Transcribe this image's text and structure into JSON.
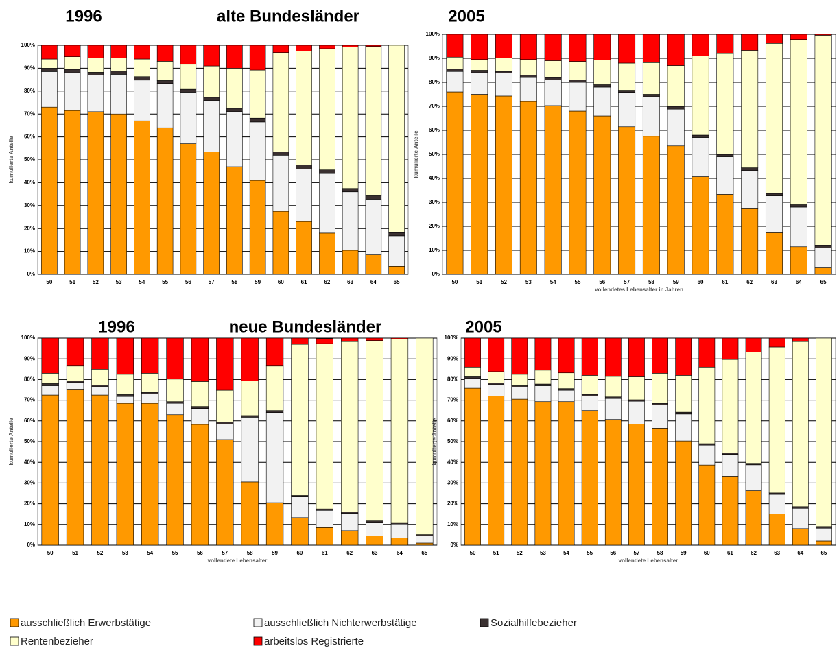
{
  "chart_data": [
    {
      "type": "bar",
      "stacked": true,
      "title": "1996",
      "subtitle": "alte Bundesländer",
      "y_label": "kumulierte Anteile",
      "categories": [
        "50",
        "51",
        "52",
        "53",
        "54",
        "55",
        "56",
        "57",
        "58",
        "59",
        "60",
        "61",
        "62",
        "63",
        "64",
        "65"
      ],
      "ylim": [
        0,
        100
      ],
      "yticks": [
        {
          "value": 0,
          "label": "0%"
        },
        {
          "value": 10,
          "label": "10%"
        },
        {
          "value": 20,
          "label": "20%"
        },
        {
          "value": 30,
          "label": "30%"
        },
        {
          "value": 40,
          "label": "40%"
        },
        {
          "value": 50,
          "label": "50%"
        },
        {
          "value": 60,
          "label": "60%"
        },
        {
          "value": 70,
          "label": "70%"
        },
        {
          "value": 80,
          "label": "80%"
        },
        {
          "value": 90,
          "label": "90%"
        },
        {
          "value": 100,
          "label": "100%"
        }
      ],
      "grid": true,
      "series": [
        {
          "name": "ausschließlich Erwerbstätige",
          "color": "#ff9900",
          "values": [
            73,
            71.5,
            71,
            70,
            67,
            64,
            57,
            53.5,
            47,
            41,
            27.5,
            23,
            18,
            10.5,
            8.5,
            3.5
          ]
        },
        {
          "name": "ausschließlich Nichterwerbstätige",
          "color": "#f2f2f2",
          "values": [
            15.5,
            16.5,
            16,
            17.3,
            17.8,
            19.3,
            22.5,
            22.3,
            24,
            25.5,
            24.5,
            23,
            26,
            25.5,
            24.3,
            13.3
          ]
        },
        {
          "name": "Sozialhilfebezieher",
          "color": "#3a3030",
          "values": [
            1.5,
            1.5,
            1.2,
            1.4,
            1.5,
            1.3,
            1.3,
            1.5,
            1.5,
            1.7,
            1.5,
            1.7,
            1.6,
            1.5,
            1.5,
            1.4
          ]
        },
        {
          "name": "Rentenbezieher",
          "color": "#ffffcc",
          "values": [
            4,
            5.5,
            6.3,
            5.8,
            7.7,
            8.4,
            10.9,
            13.7,
            17.5,
            21,
            43.3,
            49.8,
            52.9,
            61.8,
            65.2,
            81.8
          ]
        },
        {
          "name": "arbeitslos Registrierte",
          "color": "#ff0000",
          "values": [
            6,
            5,
            5.5,
            5.5,
            6,
            7,
            8.3,
            9,
            10,
            10.8,
            3.2,
            2.5,
            1.5,
            0.7,
            0.5,
            0
          ]
        }
      ]
    },
    {
      "type": "bar",
      "stacked": true,
      "title": "2005",
      "y_label": "kumulierte Anteile",
      "x_label": "vollendetes Lebensalter in Jahren",
      "categories": [
        "50",
        "51",
        "52",
        "53",
        "54",
        "55",
        "56",
        "57",
        "58",
        "59",
        "60",
        "61",
        "62",
        "63",
        "64",
        "65"
      ],
      "ylim": [
        0,
        100
      ],
      "yticks": [
        {
          "value": 0,
          "label": "0%"
        },
        {
          "value": 10,
          "label": "10%"
        },
        {
          "value": 20,
          "label": "20%"
        },
        {
          "value": 30,
          "label": "30%"
        },
        {
          "value": 40,
          "label": "40%"
        },
        {
          "value": 50,
          "label": "50%"
        },
        {
          "value": 60,
          "label": "60%"
        },
        {
          "value": 70,
          "label": "70%"
        },
        {
          "value": 80,
          "label": "80%"
        },
        {
          "value": 90,
          "label": "90%"
        },
        {
          "value": 100,
          "label": "100%"
        }
      ],
      "grid": true,
      "series": [
        {
          "color": "#ff9900",
          "values": [
            76,
            75,
            74.3,
            72,
            70.3,
            68,
            66,
            61.5,
            57.5,
            53.5,
            40.7,
            33.3,
            27.3,
            17.3,
            11.5,
            2.7
          ]
        },
        {
          "color": "#f2f2f2",
          "values": [
            8.5,
            9,
            9.5,
            10,
            10.7,
            12,
            12,
            14.3,
            16.5,
            15.3,
            16.3,
            15.7,
            15.9,
            15.4,
            16.5,
            8.3
          ]
        },
        {
          "color": "#3a3030",
          "values": [
            1,
            1,
            0.8,
            1,
            1,
            1,
            1,
            0.9,
            1,
            1.2,
            1,
            1,
            1.2,
            1,
            1,
            1
          ]
        },
        {
          "color": "#ffffcc",
          "values": [
            5,
            4.5,
            5.6,
            6.5,
            7,
            7.7,
            10.3,
            11.3,
            13.2,
            17,
            33,
            42,
            48.9,
            62.5,
            68.8,
            87.6
          ]
        },
        {
          "color": "#ff0000",
          "values": [
            9.5,
            10.5,
            9.8,
            10.5,
            11,
            11.3,
            10.7,
            12,
            11.8,
            13,
            9,
            8,
            6.7,
            3.8,
            2.2,
            0.4
          ]
        }
      ]
    },
    {
      "type": "bar",
      "stacked": true,
      "title": "1996",
      "subtitle": "neue Bundesländer",
      "y_label": "kumulierte Anteile",
      "x_label": "vollendete Lebensalter",
      "categories": [
        "50",
        "51",
        "52",
        "53",
        "54",
        "55",
        "56",
        "57",
        "58",
        "59",
        "60",
        "61",
        "62",
        "63",
        "64",
        "65"
      ],
      "ylim": [
        0,
        100
      ],
      "yticks": [
        {
          "value": 0,
          "label": "0%"
        },
        {
          "value": 10,
          "label": "10%"
        },
        {
          "value": 20,
          "label": "20%"
        },
        {
          "value": 30,
          "label": "30%"
        },
        {
          "value": 40,
          "label": "40%"
        },
        {
          "value": 50,
          "label": "50%"
        },
        {
          "value": 60,
          "label": "60%"
        },
        {
          "value": 70,
          "label": "70%"
        },
        {
          "value": 80,
          "label": "80%"
        },
        {
          "value": 90,
          "label": "90%"
        },
        {
          "value": 100,
          "label": "100%"
        }
      ],
      "grid": true,
      "series": [
        {
          "color": "#ff9900",
          "values": [
            72.5,
            75,
            72.5,
            68.5,
            68.5,
            63,
            58.3,
            51,
            30.5,
            20.5,
            13.3,
            8.5,
            7,
            4.5,
            3.5,
            1
          ]
        },
        {
          "color": "#f2f2f2",
          "values": [
            4.5,
            3.5,
            4,
            3.3,
            4.5,
            5.5,
            7.7,
            7.5,
            31.3,
            43.5,
            10,
            8.3,
            8.3,
            6.5,
            6.7,
            3.5
          ]
        },
        {
          "color": "#3a3030",
          "values": [
            1,
            0.8,
            0.8,
            0.9,
            0.8,
            0.8,
            1,
            1,
            0.8,
            1,
            0.7,
            0.7,
            0.7,
            0.7,
            0.7,
            0.6
          ]
        },
        {
          "color": "#ffffcc",
          "values": [
            5,
            7.2,
            7.7,
            9.8,
            9.2,
            10.9,
            12,
            15.3,
            16.7,
            21.5,
            73,
            79.8,
            82.3,
            87.1,
            88.6,
            94.9
          ]
        },
        {
          "color": "#ff0000",
          "values": [
            17,
            13.5,
            15,
            17.5,
            17,
            19.8,
            21,
            25.2,
            20.7,
            13.5,
            3,
            2.5,
            1.7,
            1.2,
            0.5,
            0
          ]
        }
      ]
    },
    {
      "type": "bar",
      "stacked": true,
      "title": "2005",
      "y_label": "kumulierte Anteile",
      "x_label": "vollendete Lebensalter",
      "categories": [
        "50",
        "51",
        "52",
        "53",
        "54",
        "55",
        "56",
        "57",
        "58",
        "59",
        "60",
        "61",
        "62",
        "63",
        "64",
        "65"
      ],
      "ylim": [
        0,
        100
      ],
      "yticks": [
        {
          "value": 0,
          "label": "0%"
        },
        {
          "value": 10,
          "label": "10%"
        },
        {
          "value": 20,
          "label": "20%"
        },
        {
          "value": 30,
          "label": "30%"
        },
        {
          "value": 40,
          "label": "40%"
        },
        {
          "value": 50,
          "label": "50%"
        },
        {
          "value": 60,
          "label": "60%"
        },
        {
          "value": 70,
          "label": "70%"
        },
        {
          "value": 80,
          "label": "80%"
        },
        {
          "value": 90,
          "label": "90%"
        },
        {
          "value": 100,
          "label": "100%"
        }
      ],
      "grid": true,
      "series": [
        {
          "color": "#ff9900",
          "values": [
            75.8,
            72,
            70.5,
            69.3,
            69.3,
            65,
            60.7,
            58.5,
            56.5,
            50.3,
            38.7,
            33.3,
            26.3,
            15,
            8,
            2
          ]
        },
        {
          "color": "#f2f2f2",
          "values": [
            4.7,
            5.5,
            5.8,
            7.7,
            5.5,
            7,
            10.1,
            11,
            11.2,
            13,
            9.6,
            10.5,
            12.5,
            9.5,
            9.8,
            6.2
          ]
        },
        {
          "color": "#3a3030",
          "values": [
            0.8,
            0.8,
            0.7,
            0.8,
            0.8,
            0.8,
            0.8,
            0.7,
            0.8,
            0.9,
            0.7,
            0.8,
            0.7,
            0.7,
            0.8,
            0.8
          ]
        },
        {
          "color": "#ffffcc",
          "values": [
            4.7,
            5.5,
            5.5,
            6.7,
            7.6,
            9.2,
            9.9,
            11.1,
            14.5,
            17.8,
            37,
            45.1,
            53.7,
            70.5,
            79.7,
            91
          ]
        },
        {
          "color": "#ff0000",
          "values": [
            14,
            16.2,
            17.5,
            15.5,
            16.8,
            18,
            18.5,
            18.7,
            17,
            18,
            14,
            10.3,
            6.8,
            4.3,
            1.7,
            0
          ]
        }
      ]
    }
  ]
}
